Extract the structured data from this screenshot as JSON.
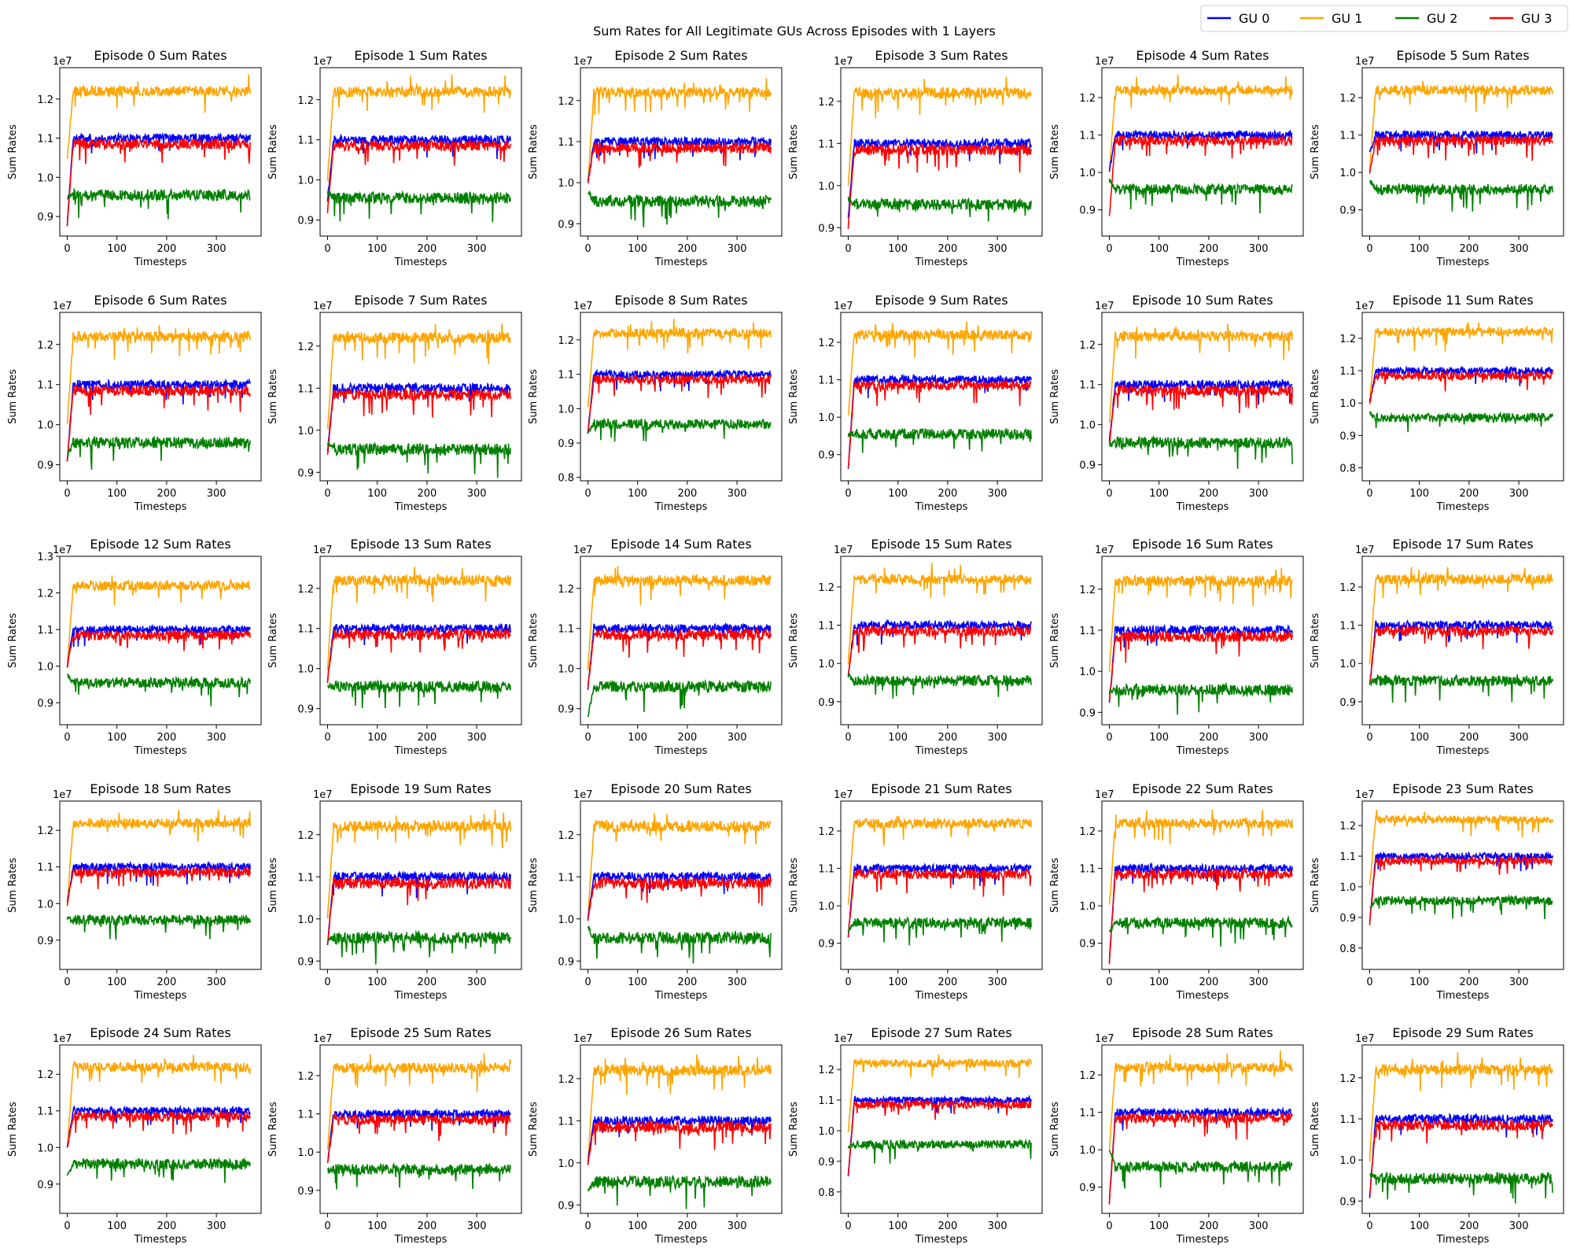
{
  "chart_data": {
    "type": "line",
    "title": "Sum Rates for All Legitimate GUs Across Episodes with 1 Layers",
    "xlabel": "Timesteps",
    "ylabel": "Sum Rates",
    "y_exponent_label": "1e7",
    "x_range": [
      0,
      368
    ],
    "x_ticks": [
      0,
      100,
      200,
      300
    ],
    "legend_position": "top-right",
    "series_legend": [
      {
        "name": "GU 0",
        "color": "#0000ff"
      },
      {
        "name": "GU 1",
        "color": "#ffa500"
      },
      {
        "name": "GU 2",
        "color": "#008000"
      },
      {
        "name": "GU 3",
        "color": "#ff0000"
      }
    ],
    "series_levels": {
      "GU 0": 1.1,
      "GU 1": 1.22,
      "GU 2": 0.955,
      "GU 3": 1.085
    },
    "panels": [
      {
        "title": "Episode 0 Sum Rates",
        "ylim": [
          0.85,
          1.28
        ],
        "yticks": [
          "0.9",
          "1.0",
          "1.1",
          "1.2"
        ],
        "start": [
          0.88,
          1.05,
          0.95,
          0.88
        ]
      },
      {
        "title": "Episode 1 Sum Rates",
        "ylim": [
          0.86,
          1.28
        ],
        "yticks": [
          "0.9",
          "1.0",
          "1.1",
          "1.2"
        ],
        "start": [
          0.95,
          1.0,
          0.97,
          0.92
        ]
      },
      {
        "title": "Episode 2 Sum Rates",
        "ylim": [
          0.87,
          1.28
        ],
        "yticks": [
          "0.9",
          "1.0",
          "1.1",
          "1.2"
        ],
        "start": [
          1.0,
          1.0,
          0.98,
          1.0
        ]
      },
      {
        "title": "Episode 3 Sum Rates",
        "ylim": [
          0.88,
          1.28
        ],
        "yticks": [
          "0.9",
          "1.0",
          "1.1",
          "1.2"
        ],
        "start": [
          0.92,
          1.0,
          0.97,
          0.9
        ]
      },
      {
        "title": "Episode 4 Sum Rates",
        "ylim": [
          0.83,
          1.28
        ],
        "yticks": [
          "0.9",
          "1.0",
          "1.1",
          "1.2"
        ],
        "start": [
          1.0,
          1.0,
          0.98,
          0.88
        ]
      },
      {
        "title": "Episode 5 Sum Rates",
        "ylim": [
          0.83,
          1.28
        ],
        "yticks": [
          "0.9",
          "1.0",
          "1.1",
          "1.2"
        ],
        "start": [
          1.05,
          1.0,
          0.98,
          1.0
        ]
      },
      {
        "title": "Episode 6 Sum Rates",
        "ylim": [
          0.86,
          1.28
        ],
        "yticks": [
          "0.9",
          "1.0",
          "1.1",
          "1.2"
        ],
        "start": [
          0.91,
          1.0,
          0.92,
          0.91
        ]
      },
      {
        "title": "Episode 7 Sum Rates",
        "ylim": [
          0.88,
          1.28
        ],
        "yticks": [
          "0.9",
          "1.0",
          "1.1",
          "1.2"
        ],
        "start": [
          0.95,
          1.0,
          0.97,
          0.94
        ]
      },
      {
        "title": "Episode 8 Sum Rates",
        "ylim": [
          0.79,
          1.28
        ],
        "yticks": [
          "0.8",
          "0.9",
          "1.0",
          "1.1",
          "1.2"
        ],
        "start": [
          0.93,
          1.0,
          0.93,
          0.93
        ]
      },
      {
        "title": "Episode 9 Sum Rates",
        "ylim": [
          0.83,
          1.28
        ],
        "yticks": [
          "0.9",
          "1.0",
          "1.1",
          "1.2"
        ],
        "start": [
          0.86,
          1.0,
          0.95,
          0.86
        ]
      },
      {
        "title": "Episode 10 Sum Rates",
        "ylim": [
          0.86,
          1.28
        ],
        "yticks": [
          "0.9",
          "1.0",
          "1.1",
          "1.2"
        ],
        "start": [
          0.96,
          1.0,
          0.95,
          0.95
        ]
      },
      {
        "title": "Episode 11 Sum Rates",
        "ylim": [
          0.76,
          1.28
        ],
        "yticks": [
          "0.8",
          "0.9",
          "1.0",
          "1.1",
          "1.2"
        ],
        "start": [
          1.0,
          1.0,
          0.97,
          1.0
        ]
      },
      {
        "title": "Episode 12 Sum Rates",
        "ylim": [
          0.84,
          1.3
        ],
        "yticks": [
          "0.9",
          "1.0",
          "1.1",
          "1.2",
          "1.3"
        ],
        "start": [
          1.0,
          1.0,
          0.98,
          1.0
        ]
      },
      {
        "title": "Episode 13 Sum Rates",
        "ylim": [
          0.86,
          1.28
        ],
        "yticks": [
          "0.9",
          "1.0",
          "1.1",
          "1.2"
        ],
        "start": [
          0.97,
          1.0,
          0.96,
          0.97
        ]
      },
      {
        "title": "Episode 14 Sum Rates",
        "ylim": [
          0.86,
          1.28
        ],
        "yticks": [
          "0.9",
          "1.0",
          "1.1",
          "1.2"
        ],
        "start": [
          0.95,
          1.0,
          0.88,
          0.95
        ]
      },
      {
        "title": "Episode 15 Sum Rates",
        "ylim": [
          0.84,
          1.28
        ],
        "yticks": [
          "0.9",
          "1.0",
          "1.1",
          "1.2"
        ],
        "start": [
          0.97,
          1.0,
          0.97,
          0.97
        ]
      },
      {
        "title": "Episode 16 Sum Rates",
        "ylim": [
          0.87,
          1.28
        ],
        "yticks": [
          "0.9",
          "1.0",
          "1.1",
          "1.2"
        ],
        "start": [
          0.92,
          1.0,
          0.95,
          0.92
        ]
      },
      {
        "title": "Episode 17 Sum Rates",
        "ylim": [
          0.84,
          1.28
        ],
        "yticks": [
          "0.9",
          "1.0",
          "1.1",
          "1.2"
        ],
        "start": [
          0.94,
          1.0,
          0.95,
          0.94
        ]
      },
      {
        "title": "Episode 18 Sum Rates",
        "ylim": [
          0.82,
          1.28
        ],
        "yticks": [
          "0.9",
          "1.0",
          "1.1",
          "1.2"
        ],
        "start": [
          1.0,
          1.0,
          0.96,
          1.0
        ]
      },
      {
        "title": "Episode 19 Sum Rates",
        "ylim": [
          0.88,
          1.28
        ],
        "yticks": [
          "0.9",
          "1.0",
          "1.1",
          "1.2"
        ],
        "start": [
          0.94,
          1.0,
          0.95,
          0.94
        ]
      },
      {
        "title": "Episode 20 Sum Rates",
        "ylim": [
          0.88,
          1.28
        ],
        "yticks": [
          "0.9",
          "1.0",
          "1.1",
          "1.2"
        ],
        "start": [
          1.0,
          1.0,
          0.98,
          1.0
        ]
      },
      {
        "title": "Episode 21 Sum Rates",
        "ylim": [
          0.83,
          1.28
        ],
        "yticks": [
          "0.9",
          "1.0",
          "1.1",
          "1.2"
        ],
        "start": [
          0.92,
          1.0,
          0.93,
          0.92
        ]
      },
      {
        "title": "Episode 22 Sum Rates",
        "ylim": [
          0.83,
          1.28
        ],
        "yticks": [
          "0.9",
          "1.0",
          "1.1",
          "1.2"
        ],
        "start": [
          0.85,
          1.0,
          0.93,
          0.85
        ]
      },
      {
        "title": "Episode 23 Sum Rates",
        "ylim": [
          0.73,
          1.28
        ],
        "yticks": [
          "0.8",
          "0.9",
          "1.0",
          "1.1",
          "1.2"
        ],
        "start": [
          0.88,
          1.0,
          0.93,
          0.88
        ]
      },
      {
        "title": "Episode 24 Sum Rates",
        "ylim": [
          0.82,
          1.28
        ],
        "yticks": [
          "0.9",
          "1.0",
          "1.1",
          "1.2"
        ],
        "start": [
          1.0,
          1.0,
          0.92,
          1.0
        ]
      },
      {
        "title": "Episode 25 Sum Rates",
        "ylim": [
          0.84,
          1.28
        ],
        "yticks": [
          "0.9",
          "1.0",
          "1.1",
          "1.2"
        ],
        "start": [
          0.97,
          1.0,
          0.95,
          0.97
        ]
      },
      {
        "title": "Episode 26 Sum Rates",
        "ylim": [
          0.88,
          1.28
        ],
        "yticks": [
          "0.9",
          "1.0",
          "1.1",
          "1.2"
        ],
        "start": [
          1.0,
          1.0,
          0.93,
          1.0
        ]
      },
      {
        "title": "Episode 27 Sum Rates",
        "ylim": [
          0.73,
          1.28
        ],
        "yticks": [
          "0.8",
          "0.9",
          "1.0",
          "1.1",
          "1.2"
        ],
        "start": [
          0.85,
          1.0,
          0.95,
          0.85
        ]
      },
      {
        "title": "Episode 28 Sum Rates",
        "ylim": [
          0.83,
          1.28
        ],
        "yticks": [
          "0.9",
          "1.0",
          "1.1",
          "1.2"
        ],
        "start": [
          0.86,
          1.0,
          1.0,
          0.86
        ]
      },
      {
        "title": "Episode 29 Sum Rates",
        "ylim": [
          0.87,
          1.28
        ],
        "yticks": [
          "0.9",
          "1.0",
          "1.1",
          "1.2"
        ],
        "start": [
          0.91,
          1.0,
          0.97,
          0.91
        ]
      }
    ]
  }
}
